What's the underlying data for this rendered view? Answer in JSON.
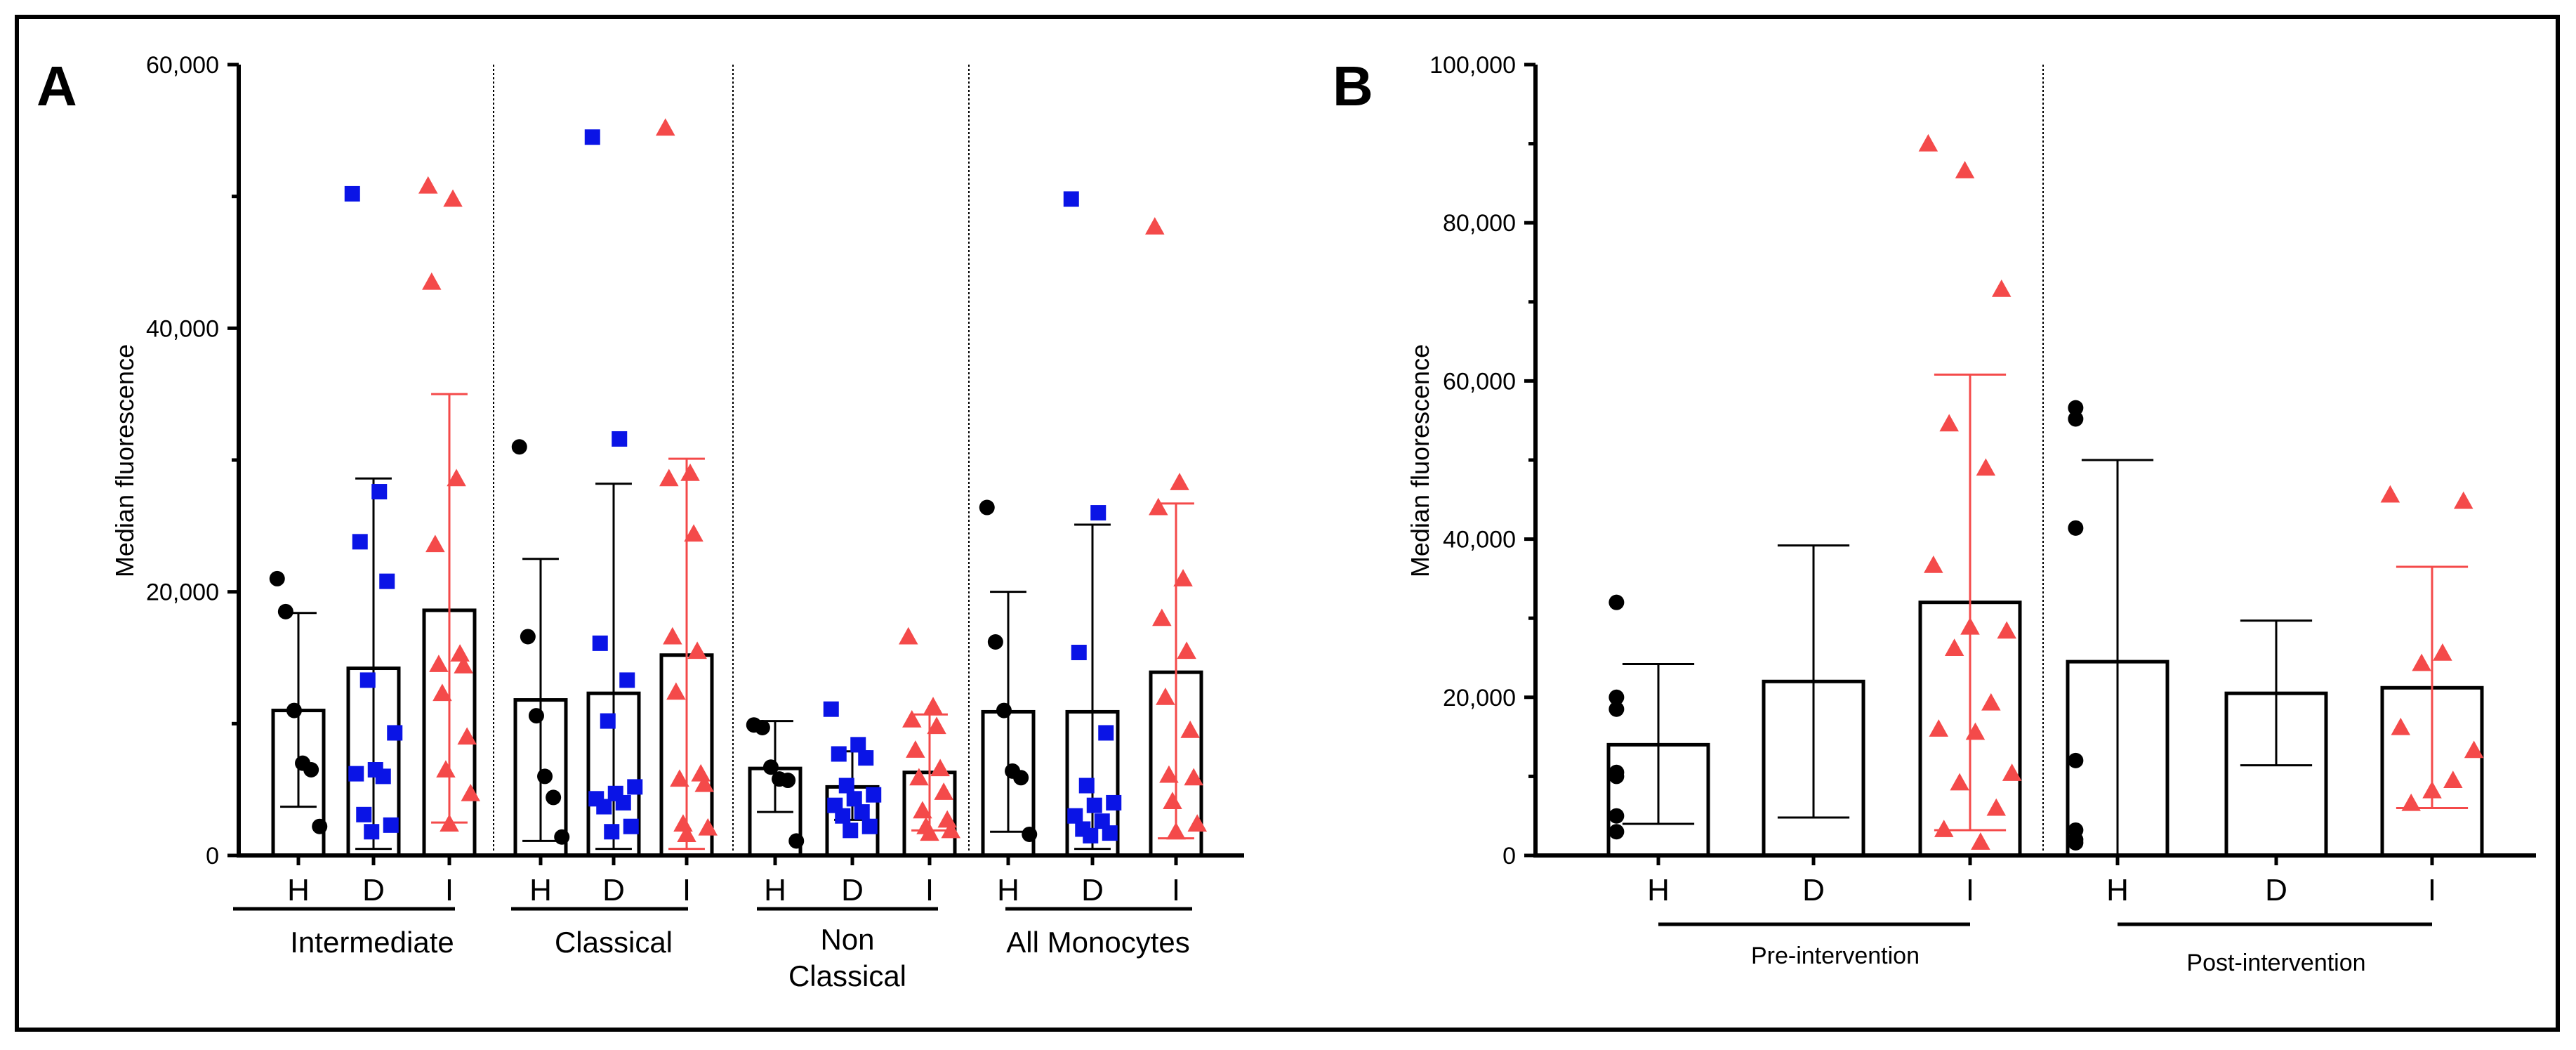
{
  "colors": {
    "H": "#000000",
    "D": "#0a14e6",
    "I": "#f44a4a",
    "frame": "#000000"
  },
  "panels": [
    {
      "letter": "A"
    },
    {
      "letter": "B"
    }
  ],
  "chart_data": [
    {
      "type": "bar",
      "panel": "A",
      "title": "",
      "xlabel": "",
      "ylabel": "Median fluorescence",
      "ylim": [
        0,
        60000
      ],
      "yticks": [
        0,
        20000,
        40000,
        60000
      ],
      "ytick_labels": [
        "0",
        "20,000",
        "40,000",
        "60,000"
      ],
      "grid": false,
      "bar_style": "open bars (mean) with SD error bars and individual points",
      "groups": [
        {
          "label": "Intermediate",
          "bars": [
            {
              "category": "H",
              "marker": "circle",
              "mean": 11000,
              "error_low": 3700,
              "error_high": 18400,
              "points": [
                21000,
                18500,
                11000,
                7000,
                6500,
                2200
              ]
            },
            {
              "category": "D",
              "marker": "square",
              "mean": 14200,
              "error_low": 500,
              "error_high": 28600,
              "points": [
                50200,
                27600,
                23800,
                20800,
                13300,
                9300,
                6500,
                6200,
                6000,
                3100,
                2300,
                1800
              ]
            },
            {
              "category": "I",
              "marker": "triangle",
              "mean": 18600,
              "error_low": 2500,
              "error_high": 35000,
              "points": [
                50800,
                49800,
                43500,
                28600,
                23600,
                15300,
                14500,
                14400,
                12300,
                9000,
                6500,
                4700,
                2400
              ]
            }
          ]
        },
        {
          "label": "Classical",
          "bars": [
            {
              "category": "H",
              "marker": "circle",
              "mean": 11800,
              "error_low": 1100,
              "error_high": 22500,
              "points": [
                31000,
                16600,
                10600,
                6000,
                4400,
                1400
              ]
            },
            {
              "category": "D",
              "marker": "square",
              "mean": 12300,
              "error_low": 500,
              "error_high": 28200,
              "points": [
                54500,
                31600,
                16100,
                13300,
                10200,
                5200,
                4700,
                4300,
                4000,
                3700,
                2200,
                1800
              ]
            },
            {
              "category": "I",
              "marker": "triangle",
              "mean": 15200,
              "error_low": 500,
              "error_high": 30100,
              "points": [
                55200,
                29000,
                28600,
                24400,
                16600,
                15500,
                12400,
                6200,
                5800,
                5400,
                2400,
                2100,
                1600
              ]
            }
          ]
        },
        {
          "label": "Non Classical",
          "label_lines": [
            "Non",
            "Classical"
          ],
          "bars": [
            {
              "category": "H",
              "marker": "circle",
              "mean": 6600,
              "error_low": 3300,
              "error_high": 10200,
              "points": [
                9900,
                9700,
                6700,
                5800,
                5700,
                1100
              ]
            },
            {
              "category": "D",
              "marker": "square",
              "mean": 5200,
              "error_low": 2700,
              "error_high": 7900,
              "points": [
                11100,
                8400,
                7700,
                7400,
                5300,
                4600,
                4300,
                3800,
                3300,
                3000,
                2200,
                1900
              ]
            },
            {
              "category": "I",
              "marker": "triangle",
              "mean": 6300,
              "error_low": 1900,
              "error_high": 10700,
              "points": [
                16600,
                11300,
                10300,
                9800,
                8000,
                6600,
                5900,
                4800,
                3400,
                2700,
                2200,
                1900,
                1700
              ]
            }
          ]
        },
        {
          "label": "All Monocytes",
          "bars": [
            {
              "category": "H",
              "marker": "circle",
              "mean": 10900,
              "error_low": 1800,
              "error_high": 20000,
              "points": [
                26400,
                16200,
                11000,
                6400,
                5900,
                1600
              ]
            },
            {
              "category": "D",
              "marker": "square",
              "mean": 10900,
              "error_low": 500,
              "error_high": 25100,
              "points": [
                49800,
                26000,
                15400,
                9300,
                5300,
                4000,
                3800,
                3000,
                2600,
                2000,
                1700,
                1500
              ]
            },
            {
              "category": "I",
              "marker": "triangle",
              "mean": 13900,
              "error_low": 1300,
              "error_high": 26700,
              "points": [
                47700,
                28300,
                26400,
                21000,
                18000,
                15500,
                12000,
                9500,
                6100,
                5900,
                4100,
                2400,
                1800
              ]
            }
          ]
        }
      ],
      "separators": "dotted vertical lines between groups"
    },
    {
      "type": "bar",
      "panel": "B",
      "title": "",
      "xlabel": "",
      "ylabel": "Median fluorescence",
      "ylim": [
        0,
        100000
      ],
      "yticks": [
        0,
        20000,
        40000,
        60000,
        80000,
        100000
      ],
      "ytick_labels": [
        "0",
        "20,000",
        "40,000",
        "60,000",
        "80,000",
        "100,000"
      ],
      "grid": false,
      "bar_style": "open bars (mean) with SD error bars and individual points",
      "groups": [
        {
          "label": "Pre-intervention",
          "bars": [
            {
              "category": "H",
              "marker": "circle",
              "mean": 14000,
              "error_low": 4000,
              "error_high": 24200,
              "points": [
                32000,
                20000,
                18500,
                10500,
                10000,
                5000,
                3000
              ]
            },
            {
              "category": "D",
              "marker": "none",
              "mean": 22000,
              "error_low": 4800,
              "error_high": 39200,
              "points": []
            },
            {
              "category": "I",
              "marker": "triangle",
              "mean": 32000,
              "error_low": 3200,
              "error_high": 60800,
              "points": [
                90000,
                86600,
                71600,
                54600,
                49000,
                36700,
                28900,
                28400,
                26200,
                19300,
                16000,
                15600,
                10400,
                9200,
                6000,
                3300,
                1700
              ]
            }
          ]
        },
        {
          "label": "Post-intervention",
          "bars": [
            {
              "category": "H",
              "marker": "circle",
              "mean": 24500,
              "error_low": 0,
              "error_high": 50000,
              "points": [
                56600,
                55200,
                41400,
                12000,
                3200,
                2000,
                1600
              ]
            },
            {
              "category": "D",
              "marker": "none",
              "mean": 20500,
              "error_low": 11400,
              "error_high": 29700,
              "points": []
            },
            {
              "category": "I",
              "marker": "triangle",
              "mean": 21200,
              "error_low": 6000,
              "error_high": 36500,
              "points": [
                45600,
                44800,
                25600,
                24300,
                16200,
                13300,
                9500,
                8200,
                6600
              ]
            }
          ]
        }
      ],
      "separators": "dotted vertical line between groups"
    }
  ]
}
